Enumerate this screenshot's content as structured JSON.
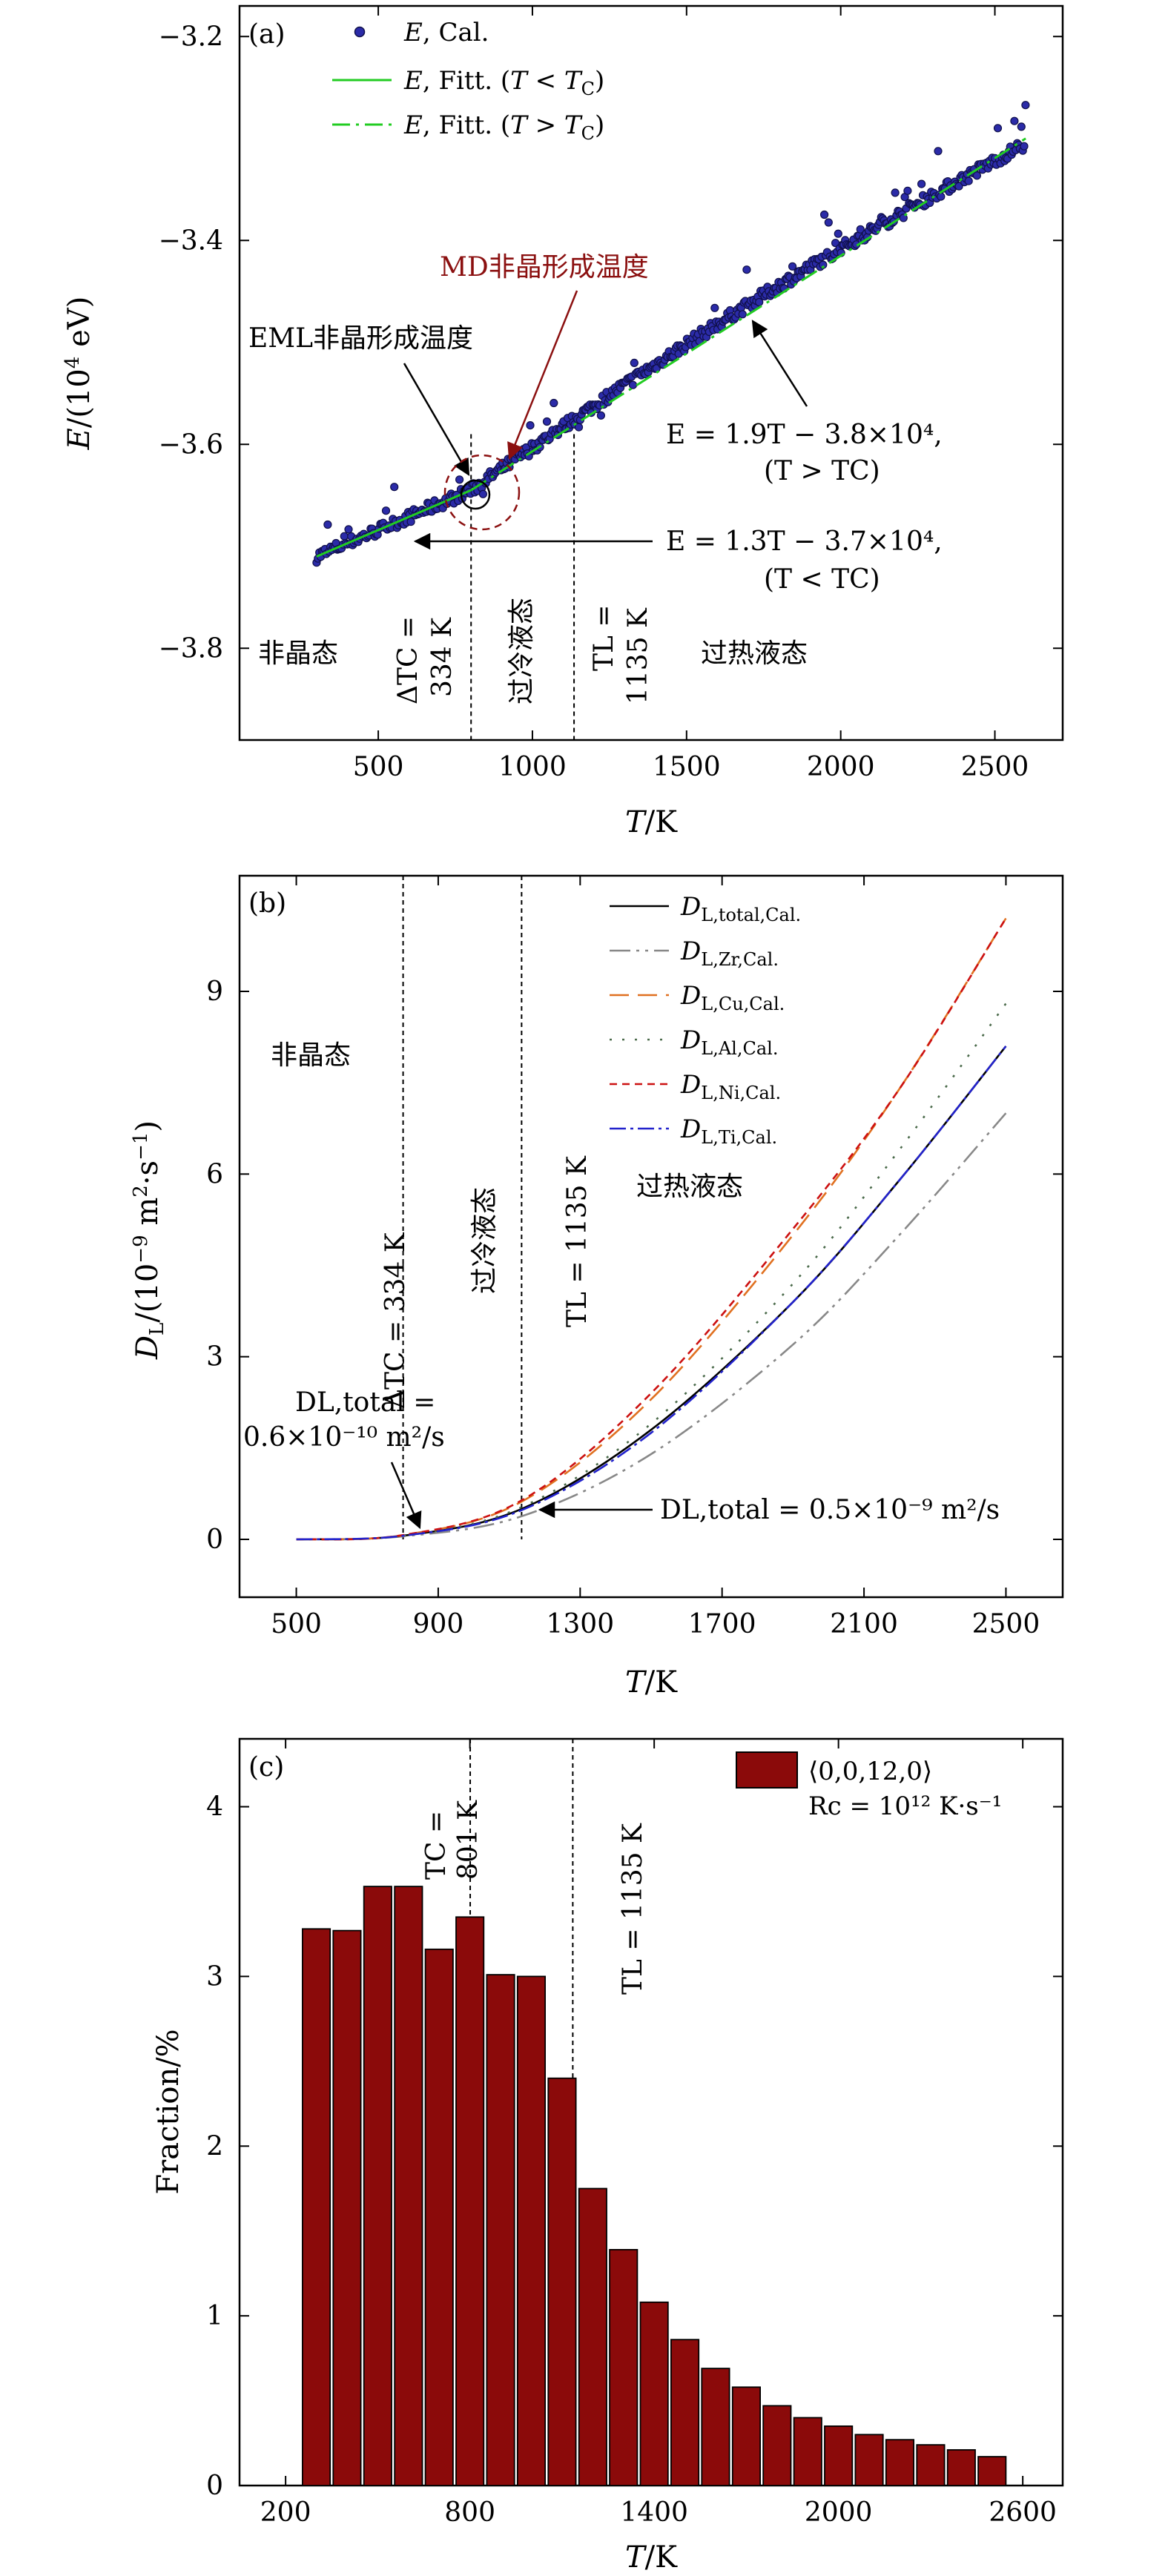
{
  "chart_data": [
    {
      "panel": "(a)",
      "type": "scatter",
      "xlabel": "T/K",
      "ylabel": "E/(10^4 eV)",
      "xlim": [
        50,
        2720
      ],
      "ylim": [
        -3.89,
        -3.17
      ],
      "xticks": [
        500,
        1000,
        1500,
        2000,
        2500
      ],
      "yticks": [
        -3.2,
        -3.4,
        -3.6,
        -3.8
      ],
      "ytick_labels": [
        "−3.2",
        "−3.4",
        "−3.6",
        "−3.8"
      ],
      "legend": [
        "E, Cal.",
        "E, Fitt. (T < TC)",
        "E, Fitt. (T > TC)"
      ],
      "series": [
        {
          "name": "E, Cal.",
          "kind": "points",
          "x_range": [
            300,
            2600
          ],
          "y_range": [
            -3.71,
            -3.31
          ],
          "color": "#1a1a8c"
        },
        {
          "name": "E, Fitt. (T < TC)",
          "kind": "line",
          "x": [
            300,
            801
          ],
          "y": [
            -3.71,
            -3.645
          ],
          "color": "#22cc22"
        },
        {
          "name": "E, Fitt. (T > TC)",
          "kind": "dashdot",
          "x": [
            801,
            2600
          ],
          "y": [
            -3.645,
            -3.3
          ],
          "color": "#22cc22"
        }
      ],
      "vlines": [
        801,
        1135
      ],
      "annotations": {
        "md_temp": "MD非晶形成温度",
        "eml_temp": "EML非晶形成温度",
        "fit_high": "E = 1.9T − 3.8×10⁴,",
        "fit_high_cond": "(T > TC)",
        "fit_low": "E = 1.3T − 3.7×10⁴,",
        "fit_low_cond": "(T < TC)",
        "amorphous": "非晶态",
        "supercooled": "过冷液态",
        "superheated": "过热液态",
        "delta_tc": "ΔTC =",
        "delta_tc_val": "334 K",
        "tl": "TL =",
        "tl_val": "1135 K"
      }
    },
    {
      "panel": "(b)",
      "type": "line",
      "xlabel": "T/K",
      "ylabel": "DL/(10⁻⁹ m²·s⁻¹)",
      "xlim": [
        340,
        2660
      ],
      "ylim": [
        -0.95,
        10.9
      ],
      "xticks": [
        500,
        900,
        1300,
        1700,
        2100,
        2500
      ],
      "yticks": [
        0,
        3,
        6,
        9
      ],
      "vlines": [
        801,
        1135
      ],
      "series": [
        {
          "name": "DL,total,Cal.",
          "x": [
            500,
            801,
            1135,
            1500,
            1900,
            2200,
            2500
          ],
          "values": [
            0,
            0.06,
            0.5,
            1.8,
            3.9,
            5.9,
            8.1
          ],
          "color": "#000000",
          "dash": ""
        },
        {
          "name": "DL,Zr,Cal.",
          "x": [
            500,
            801,
            1135,
            1500,
            1900,
            2200,
            2500
          ],
          "values": [
            0,
            0.05,
            0.38,
            1.4,
            3.2,
            5.0,
            7.0
          ],
          "color": "#888888",
          "dash": "28,8,4,8,4,8"
        },
        {
          "name": "DL,Cu,Cal.",
          "x": [
            500,
            801,
            1135,
            1500,
            1900,
            2200,
            2500
          ],
          "values": [
            0,
            0.07,
            0.62,
            2.3,
            5.0,
            7.4,
            10.2
          ],
          "color": "#e07020",
          "dash": "26,12"
        },
        {
          "name": "DL,Al,Cal.",
          "x": [
            500,
            801,
            1135,
            1500,
            1900,
            2200,
            2500
          ],
          "values": [
            0,
            0.06,
            0.53,
            1.9,
            4.2,
            6.4,
            8.8
          ],
          "color": "#4a6a4a",
          "dash": "3,14"
        },
        {
          "name": "DL,Ni,Cal.",
          "x": [
            500,
            801,
            1135,
            1500,
            1900,
            2200,
            2500
          ],
          "values": [
            0,
            0.07,
            0.64,
            2.4,
            5.1,
            7.4,
            10.2
          ],
          "color": "#cc1111",
          "dash": "10,7"
        },
        {
          "name": "DL,Ti,Cal.",
          "x": [
            500,
            801,
            1135,
            1500,
            1900,
            2200,
            2500
          ],
          "values": [
            0,
            0.06,
            0.48,
            1.75,
            3.9,
            5.9,
            8.1
          ],
          "color": "#2222cc",
          "dash": "22,6,4,6"
        }
      ],
      "annotations": {
        "amorphous": "非晶态",
        "supercooled": "过冷液态",
        "superheated": "过热液态",
        "delta_tc": "ΔTC = 334 K",
        "tl": "TL = 1135 K",
        "d_low_1": "DL,total =",
        "d_low_2": "0.6×10⁻¹⁰ m²/s",
        "d_high": "DL,total = 0.5×10⁻⁹ m²/s"
      }
    },
    {
      "panel": "(c)",
      "type": "bar",
      "xlabel": "T/K",
      "ylabel": "Fraction/%",
      "xlim": [
        50,
        2730
      ],
      "ylim": [
        0,
        4.4
      ],
      "xticks": [
        200,
        800,
        1400,
        2000,
        2600
      ],
      "yticks": [
        0,
        1,
        2,
        3,
        4
      ],
      "bar_width_K": 90,
      "x": [
        300,
        400,
        500,
        600,
        700,
        800,
        900,
        1000,
        1100,
        1200,
        1300,
        1400,
        1500,
        1600,
        1700,
        1800,
        1900,
        2000,
        2100,
        2200,
        2300,
        2400,
        2500
      ],
      "values": [
        3.28,
        3.27,
        3.53,
        3.53,
        3.16,
        3.35,
        3.01,
        3.0,
        2.4,
        1.75,
        1.39,
        1.08,
        0.86,
        0.69,
        0.58,
        0.47,
        0.4,
        0.35,
        0.3,
        0.27,
        0.24,
        0.21,
        0.17
      ],
      "bar_color": "#8b0a0a",
      "vlines": [
        801,
        1135
      ],
      "legend": "⟨0,0,12,0⟩",
      "legend_rate": "Rc = 10¹² K·s⁻¹",
      "annotations": {
        "tc": "TC =",
        "tc_val": "801 K",
        "tl": "TL = 1135 K"
      }
    }
  ]
}
